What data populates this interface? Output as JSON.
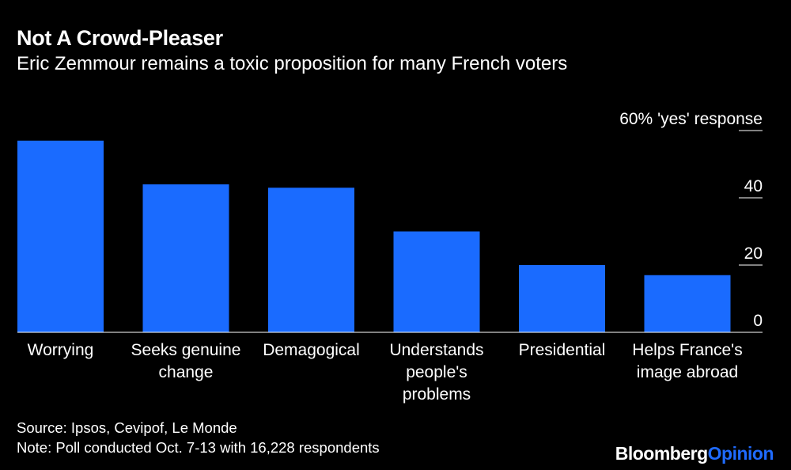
{
  "title": "Not A Crowd-Pleaser",
  "subtitle": "Eric Zemmour remains a toxic proposition for many French voters",
  "chart_data": {
    "type": "bar",
    "title": "Not A Crowd-Pleaser",
    "subtitle": "Eric Zemmour remains a toxic proposition for many French voters",
    "categories": [
      [
        "Worrying"
      ],
      [
        "Seeks genuine",
        "change"
      ],
      [
        "Demagogical"
      ],
      [
        "Understands",
        "people's",
        "problems"
      ],
      [
        "Presidential"
      ],
      [
        "Helps France's",
        "image abroad"
      ]
    ],
    "values": [
      57,
      44,
      43,
      30,
      20,
      17
    ],
    "ylim": [
      0,
      60
    ],
    "yticks": [
      {
        "value": 0,
        "label": "0"
      },
      {
        "value": 20,
        "label": "20"
      },
      {
        "value": 40,
        "label": "40"
      },
      {
        "value": 60,
        "label": "60% 'yes' response"
      }
    ],
    "ylabel": "% 'yes' response",
    "grid": false,
    "bar_color": "#1a6bff",
    "axis_color": "#ffffff"
  },
  "footer": {
    "source": "Source: Ipsos, Cevipof, Le Monde",
    "note": "Note: Poll conducted Oct. 7-13 with 16,228 respondents"
  },
  "brand": {
    "name": "Bloomberg",
    "suffix": "Opinion"
  },
  "colors": {
    "background": "#000000",
    "bar": "#1a6bff",
    "brand_accent": "#1f6bff"
  }
}
